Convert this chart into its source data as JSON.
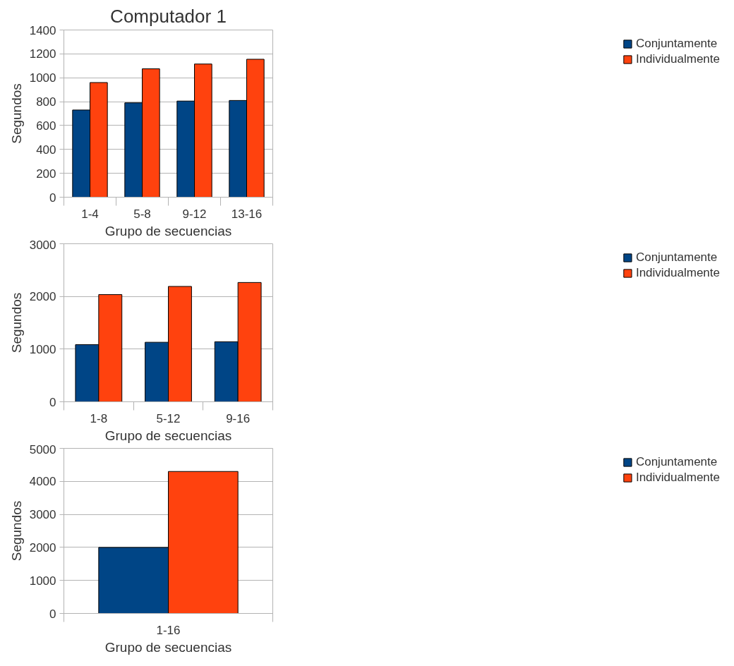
{
  "chart_data": [
    {
      "type": "bar",
      "title": "Computador 1",
      "xlabel": "Grupo de secuencias",
      "ylabel": "Segundos",
      "categories": [
        "1-4",
        "5-8",
        "9-12",
        "13-16"
      ],
      "series": [
        {
          "name": "Conjuntamente",
          "color": "#004586",
          "values": [
            730,
            790,
            805,
            810
          ]
        },
        {
          "name": "Individualmente",
          "color": "#ff420e",
          "values": [
            960,
            1075,
            1115,
            1155
          ]
        }
      ],
      "ylim": [
        0,
        1400
      ],
      "yticks": [
        0,
        200,
        400,
        600,
        800,
        1000,
        1200,
        1400
      ],
      "grid": "y",
      "legend": "right"
    },
    {
      "type": "bar",
      "xlabel": "Grupo de secuencias",
      "ylabel": "Segundos",
      "categories": [
        "1-8",
        "5-12",
        "9-16"
      ],
      "series": [
        {
          "name": "Conjuntamente",
          "color": "#004586",
          "values": [
            1085,
            1130,
            1140
          ]
        },
        {
          "name": "Individualmente",
          "color": "#ff420e",
          "values": [
            2035,
            2190,
            2265
          ]
        }
      ],
      "ylim": [
        0,
        3000
      ],
      "yticks": [
        0,
        1000,
        2000,
        3000
      ],
      "grid": "y",
      "legend": "right"
    },
    {
      "type": "bar",
      "xlabel": "Grupo de secuencias",
      "ylabel": "Segundos",
      "categories": [
        "1-16"
      ],
      "series": [
        {
          "name": "Conjuntamente",
          "color": "#004586",
          "values": [
            2000
          ]
        },
        {
          "name": "Individualmente",
          "color": "#ff420e",
          "values": [
            4300
          ]
        }
      ],
      "ylim": [
        0,
        5000
      ],
      "yticks": [
        0,
        1000,
        2000,
        3000,
        4000,
        5000
      ],
      "grid": "y",
      "legend": "right"
    }
  ]
}
